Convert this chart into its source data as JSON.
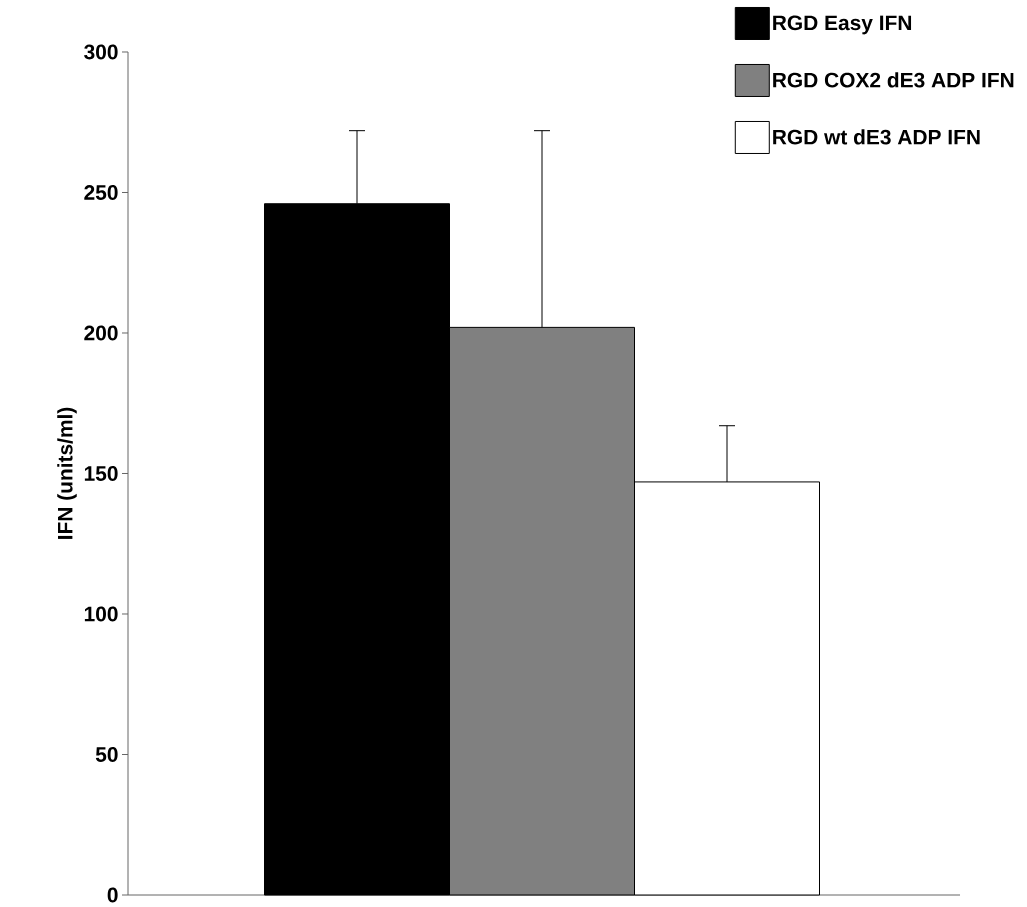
{
  "chart_data": {
    "type": "bar",
    "ylabel": "IFN (units/ml)",
    "categories": [
      null
    ],
    "ylim": [
      0,
      300
    ],
    "yticks": [
      0,
      50,
      100,
      150,
      200,
      250,
      300
    ],
    "legend": "top right",
    "series": [
      {
        "name": "RGD Easy IFN",
        "color": "#000000",
        "values": [
          246
        ],
        "errors": [
          [
            246,
            272
          ]
        ]
      },
      {
        "name": "RGD COX2 dE3 ADP IFN",
        "color": "#808080",
        "values": [
          202
        ],
        "errors": [
          [
            202,
            272
          ]
        ]
      },
      {
        "name": "RGD wt dE3 ADP IFN",
        "color": "#ffffff",
        "values": [
          147
        ],
        "errors": [
          [
            147,
            167
          ]
        ]
      }
    ]
  }
}
